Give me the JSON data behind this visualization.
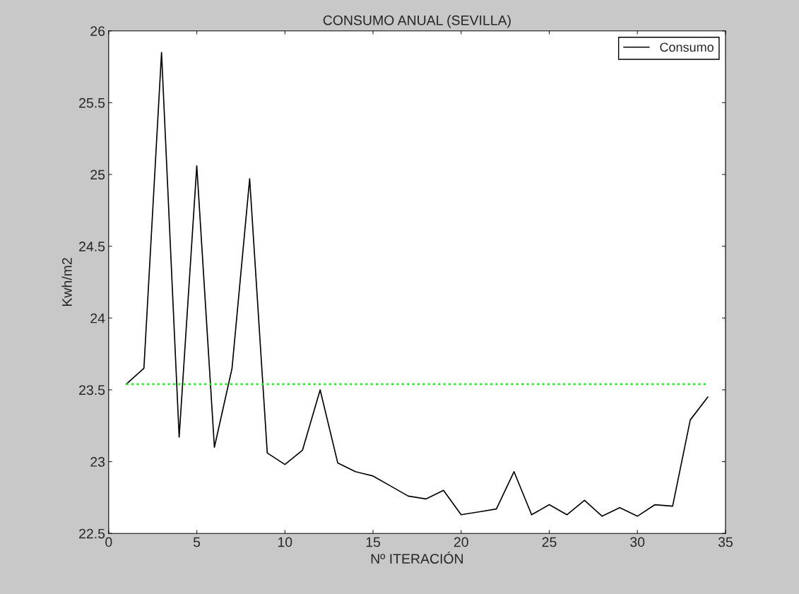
{
  "chart_data": {
    "type": "line",
    "title": "CONSUMO ANUAL (SEVILLA)",
    "xlabel": "Nº ITERACIÓN",
    "ylabel": "Kwh/m2",
    "x": [
      1,
      2,
      3,
      4,
      5,
      6,
      7,
      8,
      9,
      10,
      11,
      12,
      13,
      14,
      15,
      16,
      17,
      18,
      19,
      20,
      21,
      22,
      23,
      24,
      25,
      26,
      27,
      28,
      29,
      30,
      31,
      32,
      33,
      34
    ],
    "series": [
      {
        "name": "Consumo",
        "color": "#000000",
        "line_style": "solid",
        "values": [
          23.54,
          23.65,
          25.85,
          23.17,
          25.06,
          23.1,
          23.65,
          24.97,
          23.06,
          22.98,
          23.08,
          23.5,
          22.99,
          22.93,
          22.9,
          22.83,
          22.76,
          22.74,
          22.8,
          22.63,
          22.65,
          22.67,
          22.93,
          22.63,
          22.7,
          22.63,
          22.73,
          22.62,
          22.68,
          22.62,
          22.7,
          22.69,
          23.29,
          23.45
        ]
      },
      {
        "color": "#00ff00",
        "line_style": "dotted",
        "x": [
          1,
          34
        ],
        "values": [
          23.54,
          23.54
        ]
      }
    ],
    "xlim": [
      0,
      35
    ],
    "xticks": [
      0,
      5,
      10,
      15,
      20,
      25,
      30,
      35
    ],
    "ylim": [
      22.5,
      26
    ],
    "yticks": [
      22.5,
      23,
      23.5,
      24,
      24.5,
      25,
      25.5,
      26
    ],
    "grid": false,
    "legend": "top right",
    "marker": "none"
  }
}
